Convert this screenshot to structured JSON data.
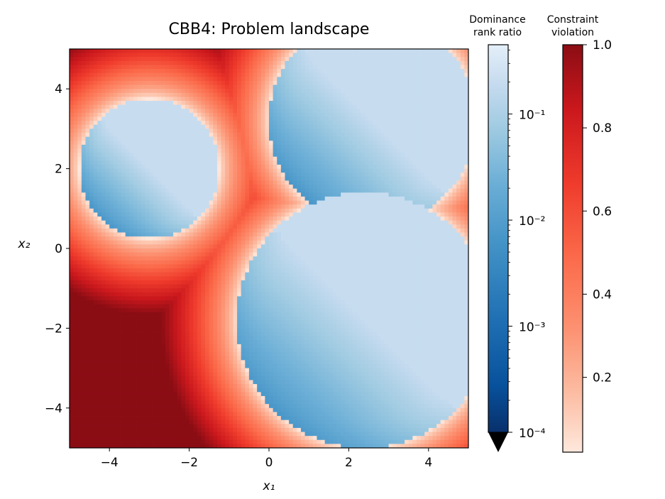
{
  "chart_data": {
    "type": "heatmap",
    "title": "CBB4: Problem landscape",
    "xlabel": "x₁",
    "ylabel": "x₂",
    "xlim": [
      -5,
      5
    ],
    "ylim": [
      -5,
      5
    ],
    "xticks": [
      -4,
      -2,
      0,
      2,
      4
    ],
    "yticks": [
      -4,
      -2,
      0,
      2,
      4
    ],
    "xtick_labels": [
      "−4",
      "−2",
      "0",
      "2",
      "4"
    ],
    "ytick_labels": [
      "−4",
      "−2",
      "0",
      "2",
      "4"
    ],
    "grid": false,
    "feasible_regions": [
      {
        "center": [
          -3,
          2
        ],
        "radius": 1.75
      },
      {
        "center": [
          2.6,
          3.2
        ],
        "radius": 2.6
      },
      {
        "center": [
          2.4,
          -1.8
        ],
        "radius": 3.2
      }
    ],
    "colorbars": [
      {
        "label": "Dominance rank ratio",
        "label_lines": [
          "Dominance",
          "rank ratio"
        ],
        "scale": "log",
        "cmap": "Blues",
        "range": [
          0.0001,
          0.45
        ],
        "extend": "min",
        "ticks": [
          "10⁻¹",
          "10⁻²",
          "10⁻³",
          "10⁻⁴"
        ],
        "tick_values": [
          0.1,
          0.01,
          0.001,
          0.0001
        ]
      },
      {
        "label": "Constraint violation",
        "label_lines": [
          "Constraint",
          "violation"
        ],
        "scale": "linear",
        "cmap": "Reds",
        "range": [
          0.02,
          1.0
        ],
        "ticks": [
          "1.0",
          "0.8",
          "0.6",
          "0.4",
          "0.2"
        ],
        "tick_values": [
          1.0,
          0.8,
          0.6,
          0.4,
          0.2
        ]
      }
    ]
  }
}
